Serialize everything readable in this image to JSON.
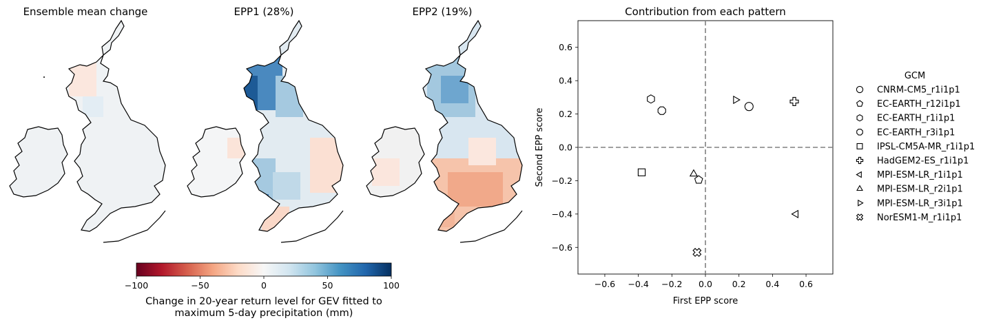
{
  "chart_data": [
    {
      "type": "heatmap",
      "title": "Ensemble mean change",
      "panel": "ensemble-mean",
      "pattern": "uniform-weak",
      "note_values": "near-zero change everywhere; slight positive over Scotland highlands"
    },
    {
      "type": "heatmap",
      "title": "EPP1 (28%)",
      "panel": "epp1",
      "pattern": "strong positive west Scotland, moderate positive Wales and southwest England, weak negative east England"
    },
    {
      "type": "heatmap",
      "title": "EPP2 (19%)",
      "panel": "epp2",
      "pattern": "positive over Scotland and northern England, negative over southern England"
    },
    {
      "type": "scatter",
      "title": "Contribution from each pattern",
      "xlabel": "First EPP score",
      "ylabel": "Second EPP score",
      "xlim": [
        -0.76,
        0.76
      ],
      "ylim": [
        -0.76,
        0.76
      ],
      "xticks": [
        "−0.6",
        "−0.4",
        "−0.2",
        "0.0",
        "0.2",
        "0.4",
        "0.6"
      ],
      "yticks": [
        "−0.6",
        "−0.4",
        "−0.2",
        "0.0",
        "0.2",
        "0.4",
        "0.6"
      ],
      "xtick_values": [
        -0.6,
        -0.4,
        -0.2,
        0.0,
        0.2,
        0.4,
        0.6
      ],
      "ytick_values": [
        -0.6,
        -0.4,
        -0.2,
        0.0,
        0.2,
        0.4,
        0.6
      ],
      "reference_lines": "dashed grey lines at x=0 and y=0",
      "legend_title": "GCM",
      "legend_position": "right, outside axes",
      "series": [
        {
          "name": "CNRM-CM5_r1i1p1",
          "marker": "circle",
          "x": 0.26,
          "y": 0.245
        },
        {
          "name": "EC-EARTH_r12i1p1",
          "marker": "pentagon",
          "x": -0.04,
          "y": -0.195
        },
        {
          "name": "EC-EARTH_r1i1p1",
          "marker": "hexagon",
          "x": -0.325,
          "y": 0.29
        },
        {
          "name": "EC-EARTH_r3i1p1",
          "marker": "octagon",
          "x": -0.26,
          "y": 0.22
        },
        {
          "name": "IPSL-CM5A-MR_r1i1p1",
          "marker": "square",
          "x": -0.38,
          "y": -0.15
        },
        {
          "name": "HadGEM2-ES_r1i1p1",
          "marker": "plus",
          "x": 0.53,
          "y": 0.275
        },
        {
          "name": "MPI-ESM-LR_r1i1p1",
          "marker": "triangle-left",
          "x": 0.54,
          "y": -0.4
        },
        {
          "name": "MPI-ESM-LR_r2i1p1",
          "marker": "triangle-up",
          "x": -0.07,
          "y": -0.16
        },
        {
          "name": "MPI-ESM-LR_r3i1p1",
          "marker": "triangle-right",
          "x": 0.18,
          "y": 0.285
        },
        {
          "name": "NorESM1-M_r1i1p1",
          "marker": "x-filled",
          "x": -0.05,
          "y": -0.63
        }
      ]
    }
  ],
  "colorbar": {
    "colormap": "RdBu",
    "min": -100,
    "max": 100,
    "ticks": [
      "−100",
      "−50",
      "0",
      "50",
      "100"
    ],
    "tick_values": [
      -100,
      -50,
      0,
      50,
      100
    ],
    "label_line1": "Change in 20-year return level for GEV fitted to",
    "label_line2": "maximum 5-day precipitation (mm)",
    "colors": [
      "#67001f",
      "#b2182b",
      "#d6604d",
      "#f4a582",
      "#fddbc7",
      "#f7f7f7",
      "#d1e5f0",
      "#92c5de",
      "#4393c3",
      "#2166ac",
      "#053061"
    ]
  }
}
